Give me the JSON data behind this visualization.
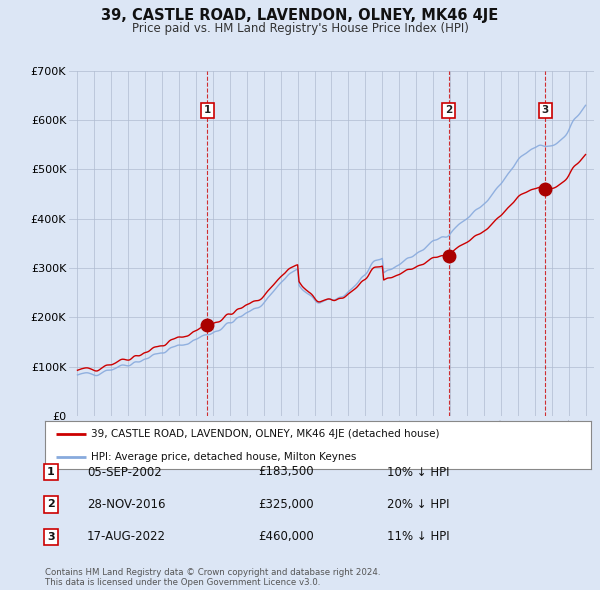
{
  "title": "39, CASTLE ROAD, LAVENDON, OLNEY, MK46 4JE",
  "subtitle": "Price paid vs. HM Land Registry's House Price Index (HPI)",
  "ylim": [
    0,
    700000
  ],
  "yticks": [
    0,
    100000,
    200000,
    300000,
    400000,
    500000,
    600000,
    700000
  ],
  "ytick_labels": [
    "£0",
    "£100K",
    "£200K",
    "£300K",
    "£400K",
    "£500K",
    "£600K",
    "£700K"
  ],
  "sale_prices": [
    183500,
    325000,
    460000
  ],
  "sale_year_floats": [
    2002.674,
    2016.913,
    2022.63
  ],
  "sale_labels": [
    "1",
    "2",
    "3"
  ],
  "sale_hpi_pct": [
    "10% ↓ HPI",
    "20% ↓ HPI",
    "11% ↓ HPI"
  ],
  "sale_date_labels": [
    "05-SEP-2002",
    "28-NOV-2016",
    "17-AUG-2022"
  ],
  "sale_price_labels": [
    "£183,500",
    "£325,000",
    "£460,000"
  ],
  "legend_address": "39, CASTLE ROAD, LAVENDON, OLNEY, MK46 4JE (detached house)",
  "legend_hpi": "HPI: Average price, detached house, Milton Keynes",
  "footer": "Contains HM Land Registry data © Crown copyright and database right 2024.\nThis data is licensed under the Open Government Licence v3.0.",
  "line_color_sale": "#cc0000",
  "line_color_hpi": "#88aadd",
  "background_color": "#dce6f5",
  "plot_bg_color": "#dce6f5",
  "grid_color": "#b0bcd0",
  "sale_marker_color": "#aa0000",
  "sale_label_box_edgecolor": "#cc0000",
  "sale_label_box_facecolor": "#ffffff",
  "dashed_line_color": "#cc0000",
  "x_start": 1995,
  "x_end": 2025,
  "xlim_left": 1994.5,
  "xlim_right": 2025.5
}
